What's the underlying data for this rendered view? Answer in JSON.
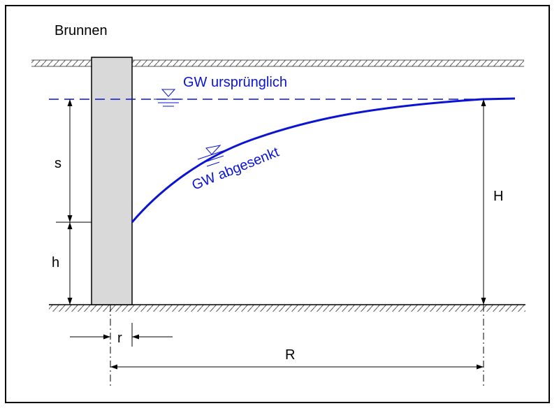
{
  "title": "Brunnen",
  "labels": {
    "gw_original": "GW ursprünglich",
    "gw_lowered": "GW abgesenkt",
    "s": "s",
    "h": "h",
    "H": "H",
    "r": "r",
    "R": "R"
  }
}
